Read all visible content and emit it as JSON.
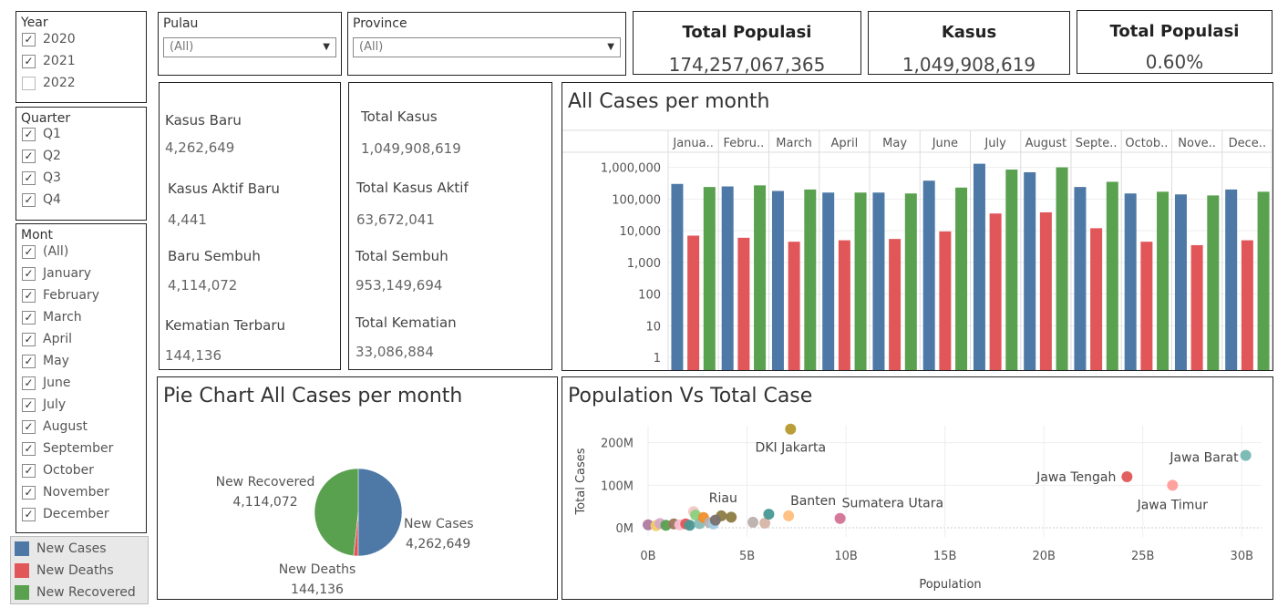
{
  "filters": {
    "year": {
      "title": "Year",
      "items": [
        {
          "label": "2020",
          "checked": true
        },
        {
          "label": "2021",
          "checked": true
        },
        {
          "label": "2022",
          "checked": false
        }
      ]
    },
    "quarter": {
      "title": "Quarter",
      "items": [
        {
          "label": "Q1",
          "checked": true
        },
        {
          "label": "Q2",
          "checked": true
        },
        {
          "label": "Q3",
          "checked": true
        },
        {
          "label": "Q4",
          "checked": true
        }
      ]
    },
    "month": {
      "title": "Mont",
      "items": [
        {
          "label": "(All)",
          "checked": true
        },
        {
          "label": "January",
          "checked": true
        },
        {
          "label": "February",
          "checked": true
        },
        {
          "label": "March",
          "checked": true
        },
        {
          "label": "April",
          "checked": true
        },
        {
          "label": "May",
          "checked": true
        },
        {
          "label": "June",
          "checked": true
        },
        {
          "label": "July",
          "checked": true
        },
        {
          "label": "August",
          "checked": true
        },
        {
          "label": "September",
          "checked": true
        },
        {
          "label": "October",
          "checked": true
        },
        {
          "label": "November",
          "checked": true
        },
        {
          "label": "December",
          "checked": true
        }
      ]
    }
  },
  "dropdowns": {
    "pulau": {
      "label": "Pulau",
      "value": "(All)"
    },
    "province": {
      "label": "Province",
      "value": "(All)"
    }
  },
  "kpis": [
    {
      "title": "Total Populasi",
      "value": "174,257,067,365"
    },
    {
      "title": "Kasus",
      "value": "1,049,908,619"
    },
    {
      "title": "Total Populasi",
      "value": "0.60%"
    }
  ],
  "stats_left": [
    {
      "label": "Kasus Baru",
      "value": "4,262,649"
    },
    {
      "label": "Kasus Aktif Baru",
      "value": "4,441"
    },
    {
      "label": "Baru Sembuh",
      "value": "4,114,072"
    },
    {
      "label": "Kematian Terbaru",
      "value": "144,136"
    }
  ],
  "stats_right": [
    {
      "label": "Total Kasus",
      "value": "1,049,908,619"
    },
    {
      "label": "Total Kasus Aktif",
      "value": "63,672,041"
    },
    {
      "label": "Total Sembuh",
      "value": "953,149,694"
    },
    {
      "label": "Total Kematian",
      "value": "33,086,884"
    }
  ],
  "legend": [
    {
      "label": "New Cases",
      "color": "#4e79a7"
    },
    {
      "label": "New Deaths",
      "color": "#e15759"
    },
    {
      "label": "New Recovered",
      "color": "#59a14f"
    }
  ],
  "chart_data": [
    {
      "type": "bar",
      "title": "All Cases per month",
      "scale": "log",
      "categories": [
        "Janua..",
        "Febru..",
        "March",
        "April",
        "May",
        "June",
        "July",
        "August",
        "Septe..",
        "Octob..",
        "Nove..",
        "Dece.."
      ],
      "ytick_labels": [
        "1",
        "10",
        "100",
        "1,000",
        "10,000",
        "100,000",
        "1,000,000"
      ],
      "series": [
        {
          "name": "New Cases",
          "color": "#4e79a7",
          "values": [
            300000,
            250000,
            180000,
            160000,
            160000,
            380000,
            1300000,
            700000,
            240000,
            150000,
            140000,
            200000
          ]
        },
        {
          "name": "New Deaths",
          "color": "#e15759",
          "values": [
            7000,
            6000,
            4500,
            5000,
            5500,
            9500,
            35000,
            38000,
            12000,
            4500,
            3500,
            5000
          ]
        },
        {
          "name": "New Recovered",
          "color": "#59a14f",
          "values": [
            240000,
            270000,
            200000,
            160000,
            150000,
            230000,
            850000,
            1000000,
            350000,
            170000,
            130000,
            170000
          ]
        }
      ]
    },
    {
      "type": "pie",
      "title": "Pie Chart All Cases per month",
      "slices": [
        {
          "label": "New Cases",
          "value": 4262649,
          "display": "4,262,649",
          "color": "#4e79a7"
        },
        {
          "label": "New Deaths",
          "value": 144136,
          "display": "144,136",
          "color": "#e15759"
        },
        {
          "label": "New Recovered",
          "value": 4114072,
          "display": "4,114,072",
          "color": "#59a14f"
        }
      ]
    },
    {
      "type": "scatter",
      "title": "Population Vs Total Case",
      "xlabel": "Population",
      "ylabel": "Total Cases",
      "xlim": [
        0,
        31
      ],
      "ylim": [
        0,
        240
      ],
      "xtick_labels": [
        "0B",
        "5B",
        "10B",
        "15B",
        "20B",
        "25B",
        "30B"
      ],
      "ytick_labels": [
        "0M",
        "100M",
        "200M"
      ],
      "points": [
        {
          "x": 7.2,
          "y": 232,
          "color": "#b6992d",
          "label": "DKI Jakarta"
        },
        {
          "x": 30.2,
          "y": 170,
          "color": "#76b7b2",
          "label": "Jawa Barat"
        },
        {
          "x": 24.2,
          "y": 120,
          "color": "#e15759",
          "label": "Jawa Tengah"
        },
        {
          "x": 26.5,
          "y": 100,
          "color": "#ff9d9a",
          "label": "Jawa Timur"
        },
        {
          "x": 9.7,
          "y": 22,
          "color": "#d37295",
          "label": "Sumatera Utara"
        },
        {
          "x": 7.1,
          "y": 28,
          "color": "#ffbe7d",
          "label": "Banten"
        },
        {
          "x": 3.7,
          "y": 28,
          "color": "#8c7b42",
          "label": "Riau"
        },
        {
          "x": 0.0,
          "y": 7,
          "color": "#b07aa1",
          "label": ""
        },
        {
          "x": 0.4,
          "y": 5,
          "color": "#f1ce63",
          "label": ""
        },
        {
          "x": 0.6,
          "y": 10,
          "color": "#d4a6c8",
          "label": ""
        },
        {
          "x": 0.9,
          "y": 6,
          "color": "#59a14f",
          "label": ""
        },
        {
          "x": 1.3,
          "y": 9,
          "color": "#9d7660",
          "label": ""
        },
        {
          "x": 1.6,
          "y": 7,
          "color": "#fabfd2",
          "label": ""
        },
        {
          "x": 1.9,
          "y": 9,
          "color": "#e15759",
          "label": ""
        },
        {
          "x": 2.3,
          "y": 38,
          "color": "#f4c6c4",
          "label": ""
        },
        {
          "x": 2.1,
          "y": 6,
          "color": "#499894",
          "label": ""
        },
        {
          "x": 2.4,
          "y": 30,
          "color": "#8cd17d",
          "label": ""
        },
        {
          "x": 2.6,
          "y": 10,
          "color": "#86bcb6",
          "label": ""
        },
        {
          "x": 2.8,
          "y": 24,
          "color": "#f28e2b",
          "label": ""
        },
        {
          "x": 3.1,
          "y": 12,
          "color": "#bab0ac",
          "label": ""
        },
        {
          "x": 3.3,
          "y": 9,
          "color": "#a0cbe8",
          "label": ""
        },
        {
          "x": 3.4,
          "y": 18,
          "color": "#79706e",
          "label": ""
        },
        {
          "x": 4.2,
          "y": 25,
          "color": "#8c7b42",
          "label": ""
        },
        {
          "x": 5.3,
          "y": 13,
          "color": "#bab0ac",
          "label": ""
        },
        {
          "x": 5.9,
          "y": 11,
          "color": "#d7b5a6",
          "label": ""
        },
        {
          "x": 6.1,
          "y": 32,
          "color": "#499894",
          "label": ""
        }
      ]
    }
  ]
}
